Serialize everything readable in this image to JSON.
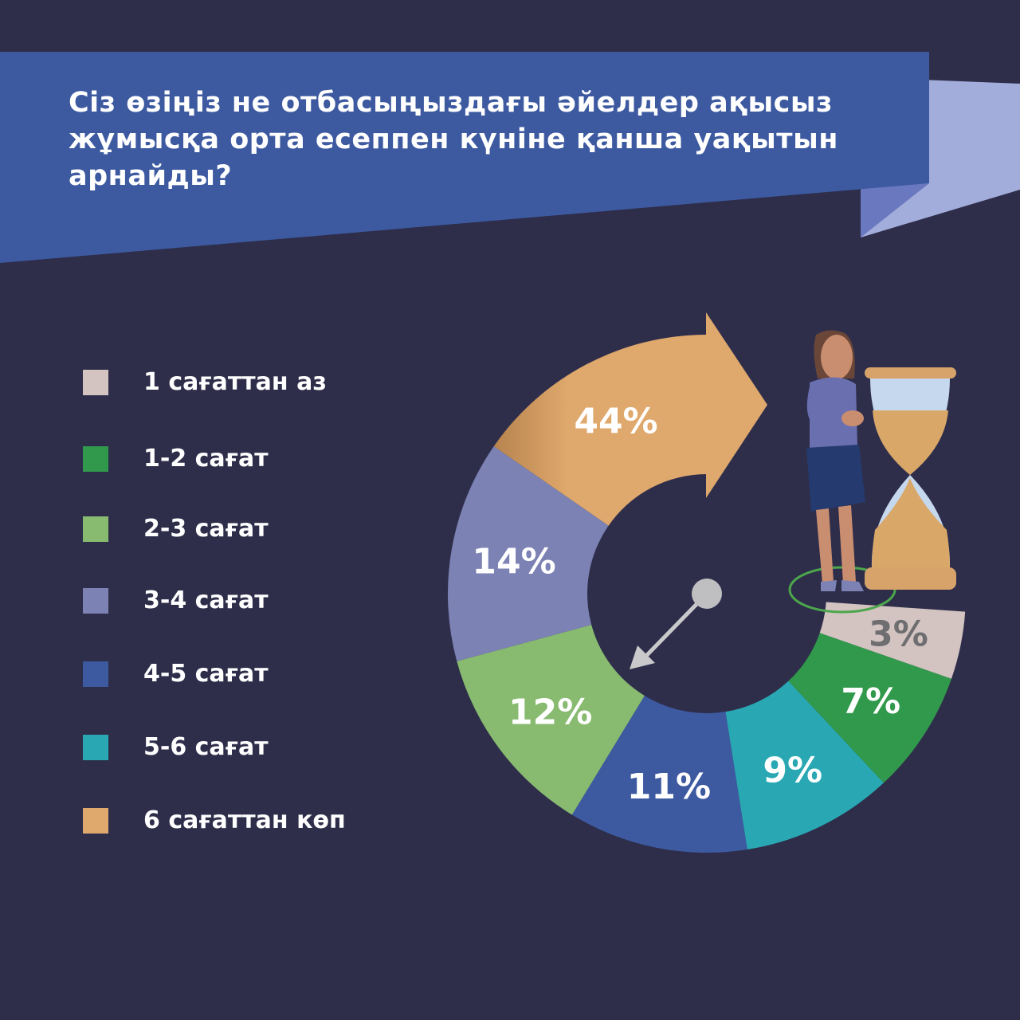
{
  "title_lines": [
    "Сіз өзіңіз не отбасыңыздағы әйелдер ақысыз",
    "жұмысқа орта есеппен күніне қанша уақытын",
    "арнайды?"
  ],
  "colors": {
    "background": "#2e2e4b",
    "banner": "#3d5aa1",
    "banner_fold": "#a3addb"
  },
  "chart_data": {
    "type": "pie",
    "style": "donut",
    "title": "Сіз өзіңіз не отбасыңыздағы әйелдер ақысыз жұмысқа орта есеппен күніне қанша уақытын арнайды?",
    "legend_position": "left",
    "categories": [
      "1 сағаттан аз",
      "1-2 сағат",
      "2-3 сағат",
      "3-4 сағат",
      "4-5 сағат",
      "5-6 сағат",
      "6 сағаттан көп"
    ],
    "values": [
      3,
      7,
      12,
      14,
      11,
      9,
      44
    ],
    "labels": [
      "3%",
      "7%",
      "12%",
      "14%",
      "11%",
      "9%",
      "44%"
    ],
    "colors": [
      "#d3c3c1",
      "#31994c",
      "#88ba70",
      "#7c82b4",
      "#3d5aa1",
      "#29a8b4",
      "#dfa86c"
    ],
    "ring_order": [
      "6 сағаттан көп",
      "3-4 сағат",
      "2-3 сағат",
      "4-5 сағат",
      "5-6 сағат",
      "1-2 сағат",
      "1 сағаттан аз"
    ],
    "label_colors": {
      "1 сағаттан аз": "#6e6e70",
      "default": "#ffffff"
    }
  }
}
